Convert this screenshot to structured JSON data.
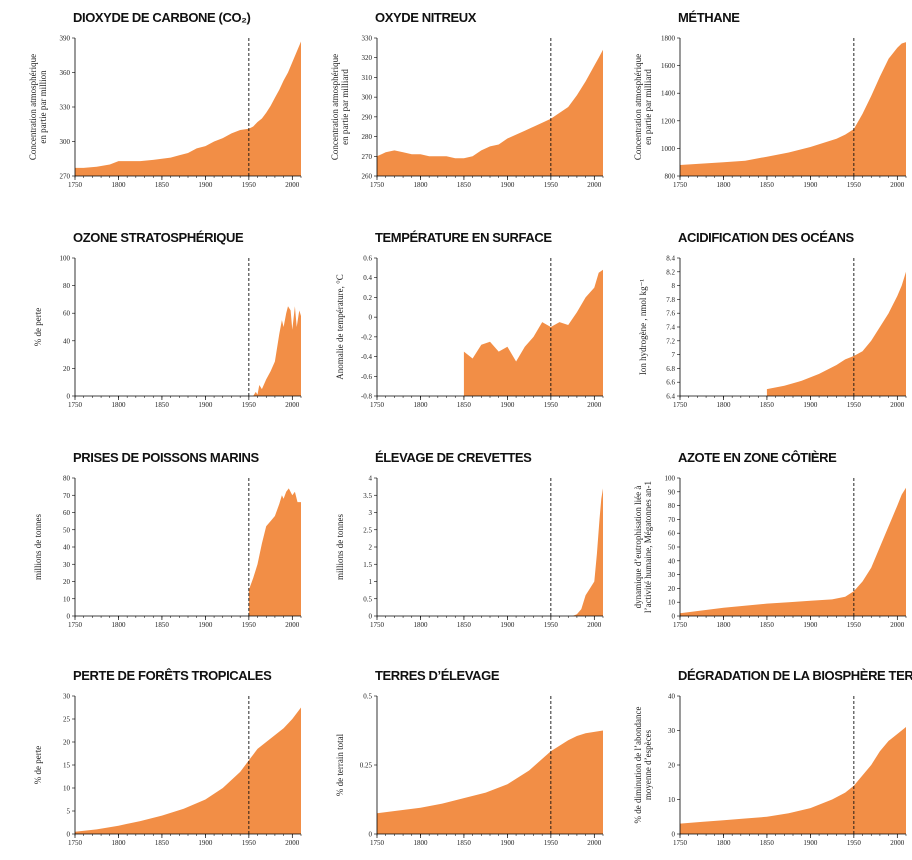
{
  "chart_data": [
    {
      "type": "area",
      "title": "DIOXYDE DE CARBONE (CO₂)",
      "ylabel": [
        "Concentration atmosphérique",
        "en partie par million"
      ],
      "xlim": [
        1750,
        2010
      ],
      "ylim": [
        270,
        390
      ],
      "xticks": [
        1750,
        1800,
        1850,
        1900,
        1950,
        2000
      ],
      "yticks": [
        270,
        300,
        330,
        360,
        390
      ],
      "marker_year": 1950,
      "x": [
        1750,
        1760,
        1775,
        1790,
        1800,
        1810,
        1825,
        1840,
        1850,
        1860,
        1870,
        1880,
        1890,
        1900,
        1910,
        1920,
        1930,
        1940,
        1950,
        1955,
        1960,
        1965,
        1970,
        1975,
        1980,
        1985,
        1990,
        1995,
        2000,
        2005,
        2010
      ],
      "y": [
        277,
        277,
        278,
        280,
        283,
        283,
        283,
        284,
        285,
        286,
        288,
        290,
        294,
        296,
        300,
        303,
        307,
        310,
        311,
        313,
        317,
        320,
        325,
        331,
        338,
        345,
        353,
        360,
        369,
        378,
        387
      ]
    },
    {
      "type": "area",
      "title": "OXYDE NITREUX",
      "ylabel": [
        "Concentration atmosphérique",
        "en partie par milliard"
      ],
      "xlim": [
        1750,
        2010
      ],
      "ylim": [
        260,
        330
      ],
      "xticks": [
        1750,
        1800,
        1850,
        1900,
        1950,
        2000
      ],
      "yticks": [
        260,
        270,
        280,
        290,
        300,
        310,
        320,
        330
      ],
      "marker_year": 1950,
      "x": [
        1750,
        1760,
        1770,
        1780,
        1790,
        1800,
        1810,
        1820,
        1830,
        1840,
        1850,
        1860,
        1870,
        1880,
        1890,
        1900,
        1910,
        1920,
        1930,
        1940,
        1950,
        1960,
        1970,
        1980,
        1990,
        2000,
        2005,
        2010
      ],
      "y": [
        270,
        272,
        273,
        272,
        271,
        271,
        270,
        270,
        270,
        269,
        269,
        270,
        273,
        275,
        276,
        279,
        281,
        283,
        285,
        287,
        289,
        292,
        295,
        301,
        308,
        316,
        320,
        324
      ]
    },
    {
      "type": "area",
      "title": "MÉTHANE",
      "ylabel": [
        "Concentration atmosphérique",
        "en partie par milliard"
      ],
      "xlim": [
        1750,
        2010
      ],
      "ylim": [
        800,
        1800
      ],
      "xticks": [
        1750,
        1800,
        1850,
        1900,
        1950,
        2000
      ],
      "yticks": [
        800,
        1000,
        1200,
        1400,
        1600,
        1800
      ],
      "marker_year": 1950,
      "x": [
        1750,
        1775,
        1800,
        1825,
        1850,
        1875,
        1900,
        1910,
        1920,
        1930,
        1940,
        1950,
        1960,
        1970,
        1980,
        1990,
        2000,
        2005,
        2010
      ],
      "y": [
        880,
        890,
        900,
        910,
        940,
        970,
        1010,
        1030,
        1050,
        1070,
        1100,
        1140,
        1250,
        1380,
        1520,
        1650,
        1730,
        1760,
        1770
      ]
    },
    {
      "type": "area",
      "title": "OZONE STRATOSPHÉRIQUE",
      "ylabel": [
        "% de perte"
      ],
      "xlim": [
        1750,
        2010
      ],
      "ylim": [
        0,
        100
      ],
      "xticks": [
        1750,
        1800,
        1850,
        1900,
        1950,
        2000
      ],
      "yticks": [
        0,
        20,
        40,
        60,
        80,
        100
      ],
      "marker_year": 1950,
      "x": [
        1955,
        1958,
        1960,
        1962,
        1965,
        1970,
        1975,
        1980,
        1985,
        1988,
        1990,
        1993,
        1995,
        1998,
        2000,
        2003,
        2005,
        2008,
        2010
      ],
      "y": [
        0,
        3,
        1,
        8,
        5,
        12,
        18,
        25,
        45,
        55,
        50,
        60,
        65,
        62,
        48,
        65,
        50,
        62,
        58
      ]
    },
    {
      "type": "area",
      "title": "TEMPÉRATURE EN SURFACE",
      "ylabel": [
        "Anomalie de température, °C"
      ],
      "xlim": [
        1750,
        2010
      ],
      "ylim": [
        -0.8,
        0.6
      ],
      "baseline": -0.8,
      "xticks": [
        1750,
        1800,
        1850,
        1900,
        1950,
        2000
      ],
      "yticks": [
        -0.8,
        -0.6,
        -0.4,
        -0.2,
        0,
        0.2,
        0.4,
        0.6
      ],
      "marker_year": 1950,
      "x": [
        1850,
        1860,
        1870,
        1880,
        1890,
        1900,
        1910,
        1920,
        1930,
        1940,
        1950,
        1960,
        1970,
        1980,
        1990,
        2000,
        2005,
        2010
      ],
      "y": [
        -0.35,
        -0.42,
        -0.28,
        -0.25,
        -0.35,
        -0.3,
        -0.45,
        -0.3,
        -0.2,
        -0.05,
        -0.1,
        -0.05,
        -0.08,
        0.05,
        0.2,
        0.3,
        0.45,
        0.48
      ]
    },
    {
      "type": "area",
      "title": "ACIDIFICATION DES OCÉANS",
      "ylabel": [
        "Ion hydrogène , nmol kg⁻¹"
      ],
      "xlim": [
        1750,
        2010
      ],
      "ylim": [
        6.4,
        8.4
      ],
      "baseline": 6.4,
      "xticks": [
        1750,
        1800,
        1850,
        1900,
        1950,
        2000
      ],
      "yticks": [
        6.4,
        6.6,
        6.8,
        7,
        7.2,
        7.4,
        7.6,
        7.8,
        8,
        8.2,
        8.4
      ],
      "marker_year": 1950,
      "x": [
        1850,
        1870,
        1890,
        1910,
        1930,
        1940,
        1950,
        1960,
        1970,
        1980,
        1990,
        2000,
        2005,
        2010
      ],
      "y": [
        6.5,
        6.55,
        6.62,
        6.72,
        6.85,
        6.93,
        6.98,
        7.05,
        7.2,
        7.4,
        7.6,
        7.85,
        8.0,
        8.2
      ]
    },
    {
      "type": "area",
      "title": "PRISES DE POISSONS MARINS",
      "ylabel": [
        "millions de tonnes"
      ],
      "xlim": [
        1750,
        2010
      ],
      "ylim": [
        0,
        80
      ],
      "xticks": [
        1750,
        1800,
        1850,
        1900,
        1950,
        2000
      ],
      "yticks": [
        0,
        10,
        20,
        30,
        40,
        50,
        60,
        70,
        80
      ],
      "marker_year": 1950,
      "x": [
        1950,
        1955,
        1960,
        1965,
        1970,
        1975,
        1980,
        1985,
        1988,
        1990,
        1993,
        1996,
        2000,
        2003,
        2006,
        2010
      ],
      "y": [
        15,
        22,
        30,
        42,
        52,
        55,
        58,
        65,
        70,
        68,
        72,
        74,
        70,
        72,
        66,
        66
      ]
    },
    {
      "type": "area",
      "title": "ÉLEVAGE DE CREVETTES",
      "ylabel": [
        "millions de tonnes"
      ],
      "xlim": [
        1750,
        2010
      ],
      "ylim": [
        0,
        4
      ],
      "xticks": [
        1750,
        1800,
        1850,
        1900,
        1950,
        2000
      ],
      "yticks": [
        0,
        0.5,
        1,
        1.5,
        2,
        2.5,
        3,
        3.5,
        4
      ],
      "marker_year": 1950,
      "x": [
        1975,
        1980,
        1985,
        1990,
        1995,
        2000,
        2003,
        2006,
        2008,
        2010
      ],
      "y": [
        0,
        0.05,
        0.2,
        0.6,
        0.8,
        1.0,
        1.8,
        2.8,
        3.4,
        3.7
      ]
    },
    {
      "type": "area",
      "title": "AZOTE EN ZONE CÔTIÈRE",
      "ylabel": [
        "dynamique d’eutrophisation liée à",
        "l’activité humaine, Mégatonnes an-1"
      ],
      "xlim": [
        1750,
        2010
      ],
      "ylim": [
        0,
        100
      ],
      "xticks": [
        1750,
        1800,
        1850,
        1900,
        1950,
        2000
      ],
      "yticks": [
        0,
        10,
        20,
        30,
        40,
        50,
        60,
        70,
        80,
        90,
        100
      ],
      "marker_year": 1950,
      "x": [
        1750,
        1800,
        1850,
        1875,
        1900,
        1925,
        1940,
        1950,
        1960,
        1970,
        1980,
        1990,
        2000,
        2005,
        2010
      ],
      "y": [
        2,
        6,
        9,
        10,
        11,
        12,
        14,
        18,
        25,
        35,
        50,
        65,
        80,
        88,
        93
      ]
    },
    {
      "type": "area",
      "title": "PERTE DE FORÊTS TROPICALES",
      "ylabel": [
        "% de perte"
      ],
      "xlim": [
        1750,
        2010
      ],
      "ylim": [
        0,
        30
      ],
      "xticks": [
        1750,
        1800,
        1850,
        1900,
        1950,
        2000
      ],
      "yticks": [
        0,
        5,
        10,
        15,
        20,
        25,
        30
      ],
      "marker_year": 1950,
      "x": [
        1750,
        1775,
        1800,
        1825,
        1850,
        1875,
        1900,
        1920,
        1940,
        1950,
        1960,
        1970,
        1980,
        1990,
        2000,
        2010
      ],
      "y": [
        0.5,
        1,
        1.8,
        2.8,
        4,
        5.5,
        7.5,
        10,
        13.5,
        16,
        18.5,
        20,
        21.5,
        23,
        25,
        27.5
      ]
    },
    {
      "type": "area",
      "title": "TERRES D’ÉLEVAGE",
      "ylabel": [
        "% de terrain total"
      ],
      "xlim": [
        1750,
        2010
      ],
      "ylim": [
        0,
        0.5
      ],
      "xticks": [
        1750,
        1800,
        1850,
        1900,
        1950,
        2000
      ],
      "yticks": [
        0,
        0.25,
        0.5
      ],
      "marker_year": 1950,
      "x": [
        1750,
        1775,
        1800,
        1825,
        1850,
        1875,
        1900,
        1925,
        1950,
        1960,
        1970,
        1980,
        1990,
        2000,
        2010
      ],
      "y": [
        0.075,
        0.085,
        0.095,
        0.11,
        0.13,
        0.15,
        0.18,
        0.23,
        0.3,
        0.32,
        0.34,
        0.355,
        0.365,
        0.37,
        0.375
      ]
    },
    {
      "type": "area",
      "title": "DÉGRADATION DE LA BIOSPHÈRE TERRESTRE",
      "ylabel": [
        "% de diminution de l’abondance",
        "moyenne d’espèces"
      ],
      "xlim": [
        1750,
        2010
      ],
      "ylim": [
        0,
        40
      ],
      "xticks": [
        1750,
        1800,
        1850,
        1900,
        1950,
        2000
      ],
      "yticks": [
        0,
        10,
        20,
        30,
        40
      ],
      "marker_year": 1950,
      "x": [
        1750,
        1775,
        1800,
        1825,
        1850,
        1875,
        1900,
        1925,
        1940,
        1950,
        1960,
        1970,
        1980,
        1990,
        2000,
        2010
      ],
      "y": [
        3,
        3.5,
        4,
        4.5,
        5,
        6,
        7.5,
        10,
        12,
        14,
        17,
        20,
        24,
        27,
        29,
        31
      ]
    }
  ]
}
